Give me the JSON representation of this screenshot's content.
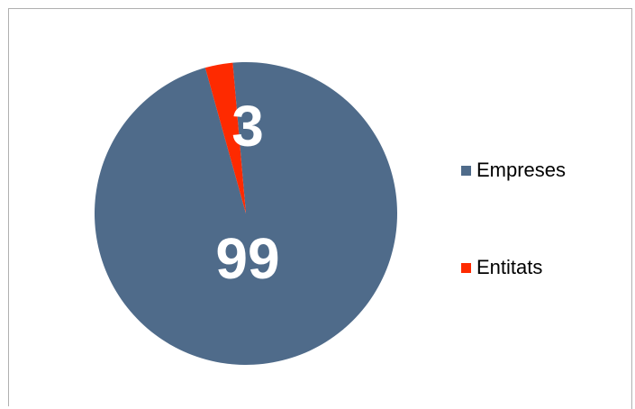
{
  "chart_data": {
    "type": "pie",
    "title": "",
    "categories": [
      "Empreses",
      "Entitats"
    ],
    "values": [
      99,
      3
    ],
    "colors": [
      "#4f6b8a",
      "#fe2a00"
    ],
    "start_angle_deg": -5,
    "grid": false,
    "legend_position": "right"
  }
}
